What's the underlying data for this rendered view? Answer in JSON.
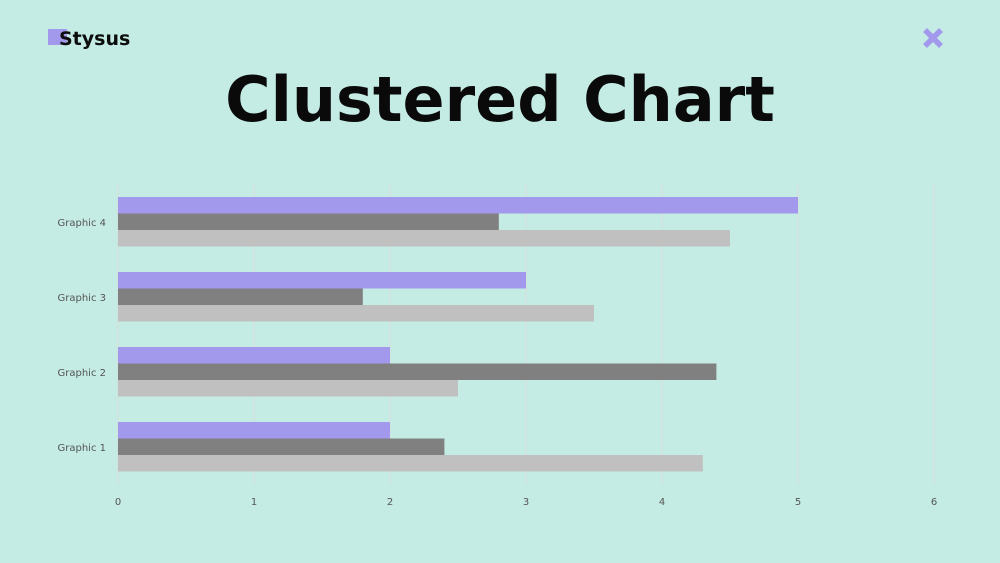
{
  "brand": {
    "name": "Stysus",
    "accent": "#a399ec"
  },
  "header": {
    "close_icon": "close-x-icon"
  },
  "title": "Clustered Chart",
  "colors": {
    "background": "#c4ece4",
    "grid": "#dadada"
  },
  "chart_data": {
    "type": "bar",
    "orientation": "horizontal",
    "categories": [
      "Graphic 1",
      "Graphic 2",
      "Graphic 3",
      "Graphic 4"
    ],
    "series": [
      {
        "color": "#a399ec",
        "values": [
          2,
          2,
          3,
          5
        ]
      },
      {
        "color": "#808080",
        "values": [
          2.4,
          4.4,
          1.8,
          2.8
        ]
      },
      {
        "color": "#c0c0c0",
        "values": [
          4.3,
          2.5,
          3.5,
          4.5
        ]
      }
    ],
    "xlim": [
      0,
      6
    ],
    "xticks": [
      "0",
      "1",
      "2",
      "3",
      "4",
      "5",
      "6"
    ],
    "grid": true,
    "legend": "none"
  }
}
